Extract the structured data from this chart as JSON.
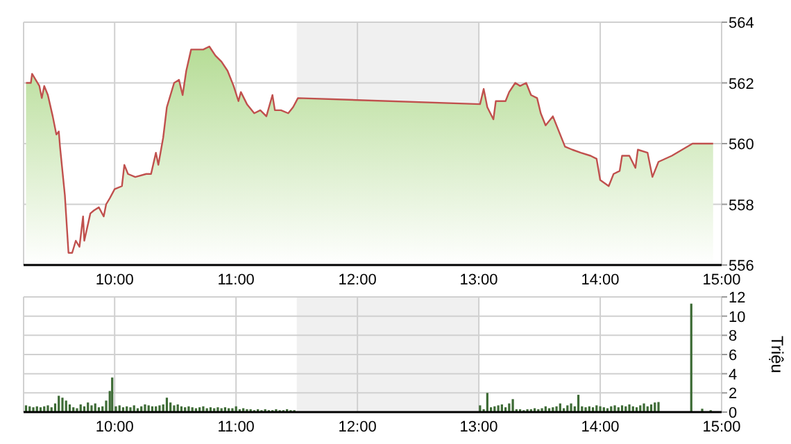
{
  "chart_data": [
    {
      "type": "area",
      "x": [
        9.27,
        9.31,
        9.32,
        9.38,
        9.4,
        9.42,
        9.45,
        9.49,
        9.52,
        9.54,
        9.55,
        9.59,
        9.62,
        9.65,
        9.68,
        9.71,
        9.74,
        9.75,
        9.8,
        9.83,
        9.87,
        9.91,
        9.93,
        9.96,
        10.0,
        10.06,
        10.08,
        10.11,
        10.17,
        10.26,
        10.3,
        10.34,
        10.36,
        10.4,
        10.43,
        10.49,
        10.53,
        10.56,
        10.59,
        10.63,
        10.68,
        10.73,
        10.78,
        10.83,
        10.88,
        10.93,
        10.98,
        11.02,
        11.04,
        11.09,
        11.15,
        11.2,
        11.25,
        11.3,
        11.32,
        11.37,
        11.43,
        11.47,
        11.51,
        13.01,
        13.04,
        13.07,
        13.12,
        13.14,
        13.22,
        13.25,
        13.3,
        13.34,
        13.39,
        13.43,
        13.48,
        13.51,
        13.55,
        13.61,
        13.67,
        13.71,
        13.77,
        13.84,
        13.92,
        13.97,
        14.0,
        14.07,
        14.11,
        14.16,
        14.18,
        14.24,
        14.29,
        14.31,
        14.39,
        14.43,
        14.48,
        14.59,
        14.76,
        14.93
      ],
      "series": [
        {
          "color": "#c0504d",
          "values": [
            562.0,
            562.0,
            562.3,
            561.9,
            561.5,
            561.9,
            561.6,
            560.9,
            560.3,
            560.4,
            559.9,
            558.3,
            556.4,
            556.4,
            556.8,
            556.6,
            557.6,
            556.8,
            557.7,
            557.8,
            557.9,
            557.6,
            558.0,
            558.2,
            558.5,
            558.6,
            559.3,
            559.0,
            558.9,
            559.0,
            559.0,
            559.7,
            559.3,
            560.2,
            561.2,
            562.0,
            562.1,
            561.6,
            562.4,
            563.1,
            563.1,
            563.1,
            563.2,
            562.9,
            562.7,
            562.4,
            561.9,
            561.4,
            561.7,
            561.3,
            561.0,
            561.1,
            560.9,
            561.6,
            561.1,
            561.1,
            561.0,
            561.2,
            561.5,
            561.3,
            561.8,
            561.2,
            560.8,
            561.4,
            561.4,
            561.7,
            562.0,
            561.9,
            562.0,
            561.6,
            561.5,
            561.0,
            560.6,
            560.9,
            560.3,
            559.9,
            559.8,
            559.7,
            559.6,
            559.5,
            558.8,
            558.6,
            559.0,
            559.1,
            559.6,
            559.6,
            559.2,
            559.8,
            559.7,
            558.9,
            559.4,
            559.6,
            560.0,
            560.0
          ]
        }
      ],
      "xlim": [
        9.25,
        15
      ],
      "xticks": [
        {
          "value": 10,
          "label": "10:00"
        },
        {
          "value": 11,
          "label": "11:00"
        },
        {
          "value": 12,
          "label": "12:00"
        },
        {
          "value": 13,
          "label": "13:00"
        },
        {
          "value": 14,
          "label": "14:00"
        },
        {
          "value": 15,
          "label": "15:00"
        }
      ],
      "ylim": [
        556,
        564
      ],
      "yticks": [
        556,
        558,
        560,
        562,
        564
      ],
      "grid": true,
      "bands": [
        {
          "axis": "x",
          "from": 11.5,
          "to": 13,
          "color": "#f0f0f0"
        }
      ]
    },
    {
      "type": "bar",
      "ylabel": "Triệu",
      "x": [
        9.27,
        9.3,
        9.33,
        9.36,
        9.39,
        9.42,
        9.45,
        9.48,
        9.51,
        9.54,
        9.57,
        9.6,
        9.63,
        9.66,
        9.69,
        9.72,
        9.75,
        9.78,
        9.81,
        9.84,
        9.87,
        9.9,
        9.93,
        9.96,
        9.98,
        10.01,
        10.04,
        10.07,
        10.1,
        10.13,
        10.16,
        10.19,
        10.22,
        10.25,
        10.28,
        10.31,
        10.34,
        10.37,
        10.4,
        10.43,
        10.46,
        10.49,
        10.52,
        10.55,
        10.58,
        10.61,
        10.64,
        10.67,
        10.7,
        10.73,
        10.76,
        10.79,
        10.82,
        10.85,
        10.88,
        10.91,
        10.94,
        10.97,
        11.0,
        11.03,
        11.06,
        11.09,
        11.12,
        11.15,
        11.18,
        11.21,
        11.24,
        11.27,
        11.3,
        11.33,
        11.36,
        11.39,
        11.42,
        11.45,
        11.48,
        13.01,
        13.04,
        13.07,
        13.1,
        13.13,
        13.16,
        13.19,
        13.22,
        13.25,
        13.28,
        13.31,
        13.34,
        13.37,
        13.4,
        13.43,
        13.46,
        13.49,
        13.52,
        13.55,
        13.58,
        13.61,
        13.64,
        13.67,
        13.7,
        13.73,
        13.76,
        13.79,
        13.82,
        13.85,
        13.88,
        13.91,
        13.94,
        13.97,
        14.0,
        14.03,
        14.06,
        14.09,
        14.12,
        14.15,
        14.18,
        14.21,
        14.24,
        14.27,
        14.3,
        14.33,
        14.36,
        14.39,
        14.42,
        14.45,
        14.48,
        14.75,
        14.84,
        14.91
      ],
      "series": [
        {
          "color": "#3d6b35",
          "values": [
            0.7,
            0.6,
            0.5,
            0.6,
            0.5,
            0.6,
            0.7,
            0.5,
            0.9,
            1.7,
            1.5,
            1.2,
            0.8,
            0.5,
            0.4,
            0.8,
            0.6,
            1.0,
            0.7,
            0.9,
            0.5,
            0.6,
            1.2,
            2.2,
            3.6,
            0.6,
            0.7,
            0.5,
            0.6,
            0.5,
            0.7,
            0.4,
            0.6,
            0.8,
            0.7,
            0.6,
            0.6,
            0.7,
            0.8,
            1.5,
            1.0,
            0.7,
            0.8,
            0.6,
            0.5,
            0.6,
            0.5,
            0.4,
            0.5,
            0.6,
            0.4,
            0.5,
            0.4,
            0.5,
            0.4,
            0.5,
            0.4,
            0.4,
            0.6,
            0.3,
            0.4,
            0.3,
            0.3,
            0.2,
            0.3,
            0.2,
            0.3,
            0.2,
            0.2,
            0.3,
            0.2,
            0.2,
            0.3,
            0.2,
            0.2,
            0.7,
            0.3,
            2.0,
            0.5,
            0.6,
            0.7,
            0.8,
            0.5,
            0.9,
            1.35,
            0.3,
            0.3,
            0.2,
            0.3,
            0.3,
            0.4,
            0.3,
            0.4,
            0.6,
            0.4,
            0.5,
            0.6,
            0.9,
            0.4,
            0.7,
            0.9,
            0.6,
            1.8,
            0.6,
            0.5,
            0.6,
            0.5,
            0.7,
            0.6,
            0.5,
            0.4,
            0.6,
            0.7,
            0.5,
            0.7,
            0.6,
            0.8,
            0.6,
            0.5,
            0.7,
            0.9,
            0.6,
            0.8,
            1.0,
            1.05,
            11.3,
            0.35,
            0.2
          ]
        }
      ],
      "xlim": [
        9.25,
        15
      ],
      "xticks": [
        {
          "value": 10,
          "label": "10:00"
        },
        {
          "value": 11,
          "label": "11:00"
        },
        {
          "value": 12,
          "label": "12:00"
        },
        {
          "value": 13,
          "label": "13:00"
        },
        {
          "value": 14,
          "label": "14:00"
        },
        {
          "value": 15,
          "label": "15:00"
        }
      ],
      "ylim": [
        0,
        12
      ],
      "yticks": [
        0,
        2,
        4,
        6,
        8,
        10,
        12
      ],
      "grid": true,
      "bands": [
        {
          "axis": "x",
          "from": 11.5,
          "to": 13,
          "color": "#f0f0f0"
        }
      ]
    }
  ]
}
